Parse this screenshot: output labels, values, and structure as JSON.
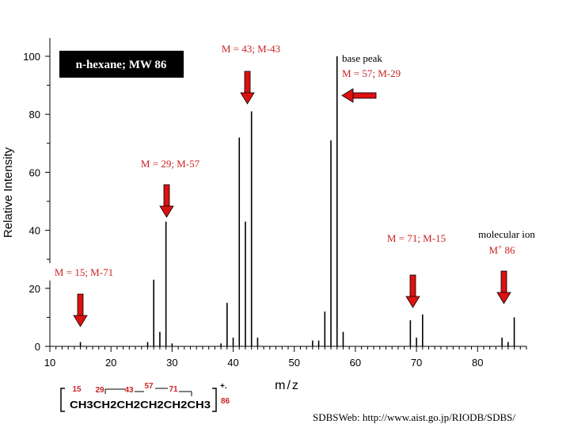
{
  "chart_data": {
    "type": "bar",
    "title": "n-hexane; MW 86",
    "xlabel": "m/z",
    "ylabel": "Relative Intensity",
    "xlim": [
      10,
      88
    ],
    "ylim": [
      0,
      100
    ],
    "x_ticks": [
      10,
      20,
      30,
      40,
      50,
      60,
      70,
      80
    ],
    "y_ticks": [
      0,
      20,
      40,
      60,
      80,
      100
    ],
    "peaks": [
      {
        "mz": 15,
        "intensity": 1.5
      },
      {
        "mz": 26,
        "intensity": 1.5
      },
      {
        "mz": 27,
        "intensity": 23
      },
      {
        "mz": 28,
        "intensity": 5
      },
      {
        "mz": 29,
        "intensity": 43
      },
      {
        "mz": 30,
        "intensity": 1
      },
      {
        "mz": 38,
        "intensity": 1
      },
      {
        "mz": 39,
        "intensity": 15
      },
      {
        "mz": 40,
        "intensity": 3
      },
      {
        "mz": 41,
        "intensity": 72
      },
      {
        "mz": 42,
        "intensity": 43
      },
      {
        "mz": 43,
        "intensity": 81
      },
      {
        "mz": 44,
        "intensity": 3
      },
      {
        "mz": 53,
        "intensity": 2
      },
      {
        "mz": 54,
        "intensity": 2
      },
      {
        "mz": 55,
        "intensity": 12
      },
      {
        "mz": 56,
        "intensity": 71
      },
      {
        "mz": 57,
        "intensity": 100
      },
      {
        "mz": 58,
        "intensity": 5
      },
      {
        "mz": 69,
        "intensity": 9
      },
      {
        "mz": 70,
        "intensity": 3
      },
      {
        "mz": 71,
        "intensity": 11
      },
      {
        "mz": 84,
        "intensity": 3
      },
      {
        "mz": 85,
        "intensity": 1.5
      },
      {
        "mz": 86,
        "intensity": 10
      }
    ],
    "annotations": [
      {
        "label": "M = 43; M-43",
        "mz": 43
      },
      {
        "label_line1": "base peak",
        "label_line2": "M = 57; M-29",
        "mz": 57
      },
      {
        "label": "M = 29; M-57",
        "mz": 29
      },
      {
        "label": "M = 71; M-15",
        "mz": 71
      },
      {
        "label_line1": "molecular ion",
        "label_line2": "M",
        "label_sup": "+",
        "label_line2_rest": " 86",
        "mz": 86
      },
      {
        "label": "M = 15; M-71",
        "mz": 15
      }
    ],
    "fragmentation": {
      "masses": [
        "15",
        "29",
        "43",
        "57",
        "71"
      ],
      "formula_text": "CH3CH2CH2CH2CH2CH3",
      "charge": "+.",
      "parent_mass": "86"
    },
    "source": "SDBSWeb: http://www.aist.go.jp/RIODB/SDBS/"
  },
  "colors": {
    "arrow": "#dd1111",
    "label_red": "#cc2222",
    "title_box": "#000000",
    "title_text": "#ffffff",
    "bars": "#000000"
  }
}
